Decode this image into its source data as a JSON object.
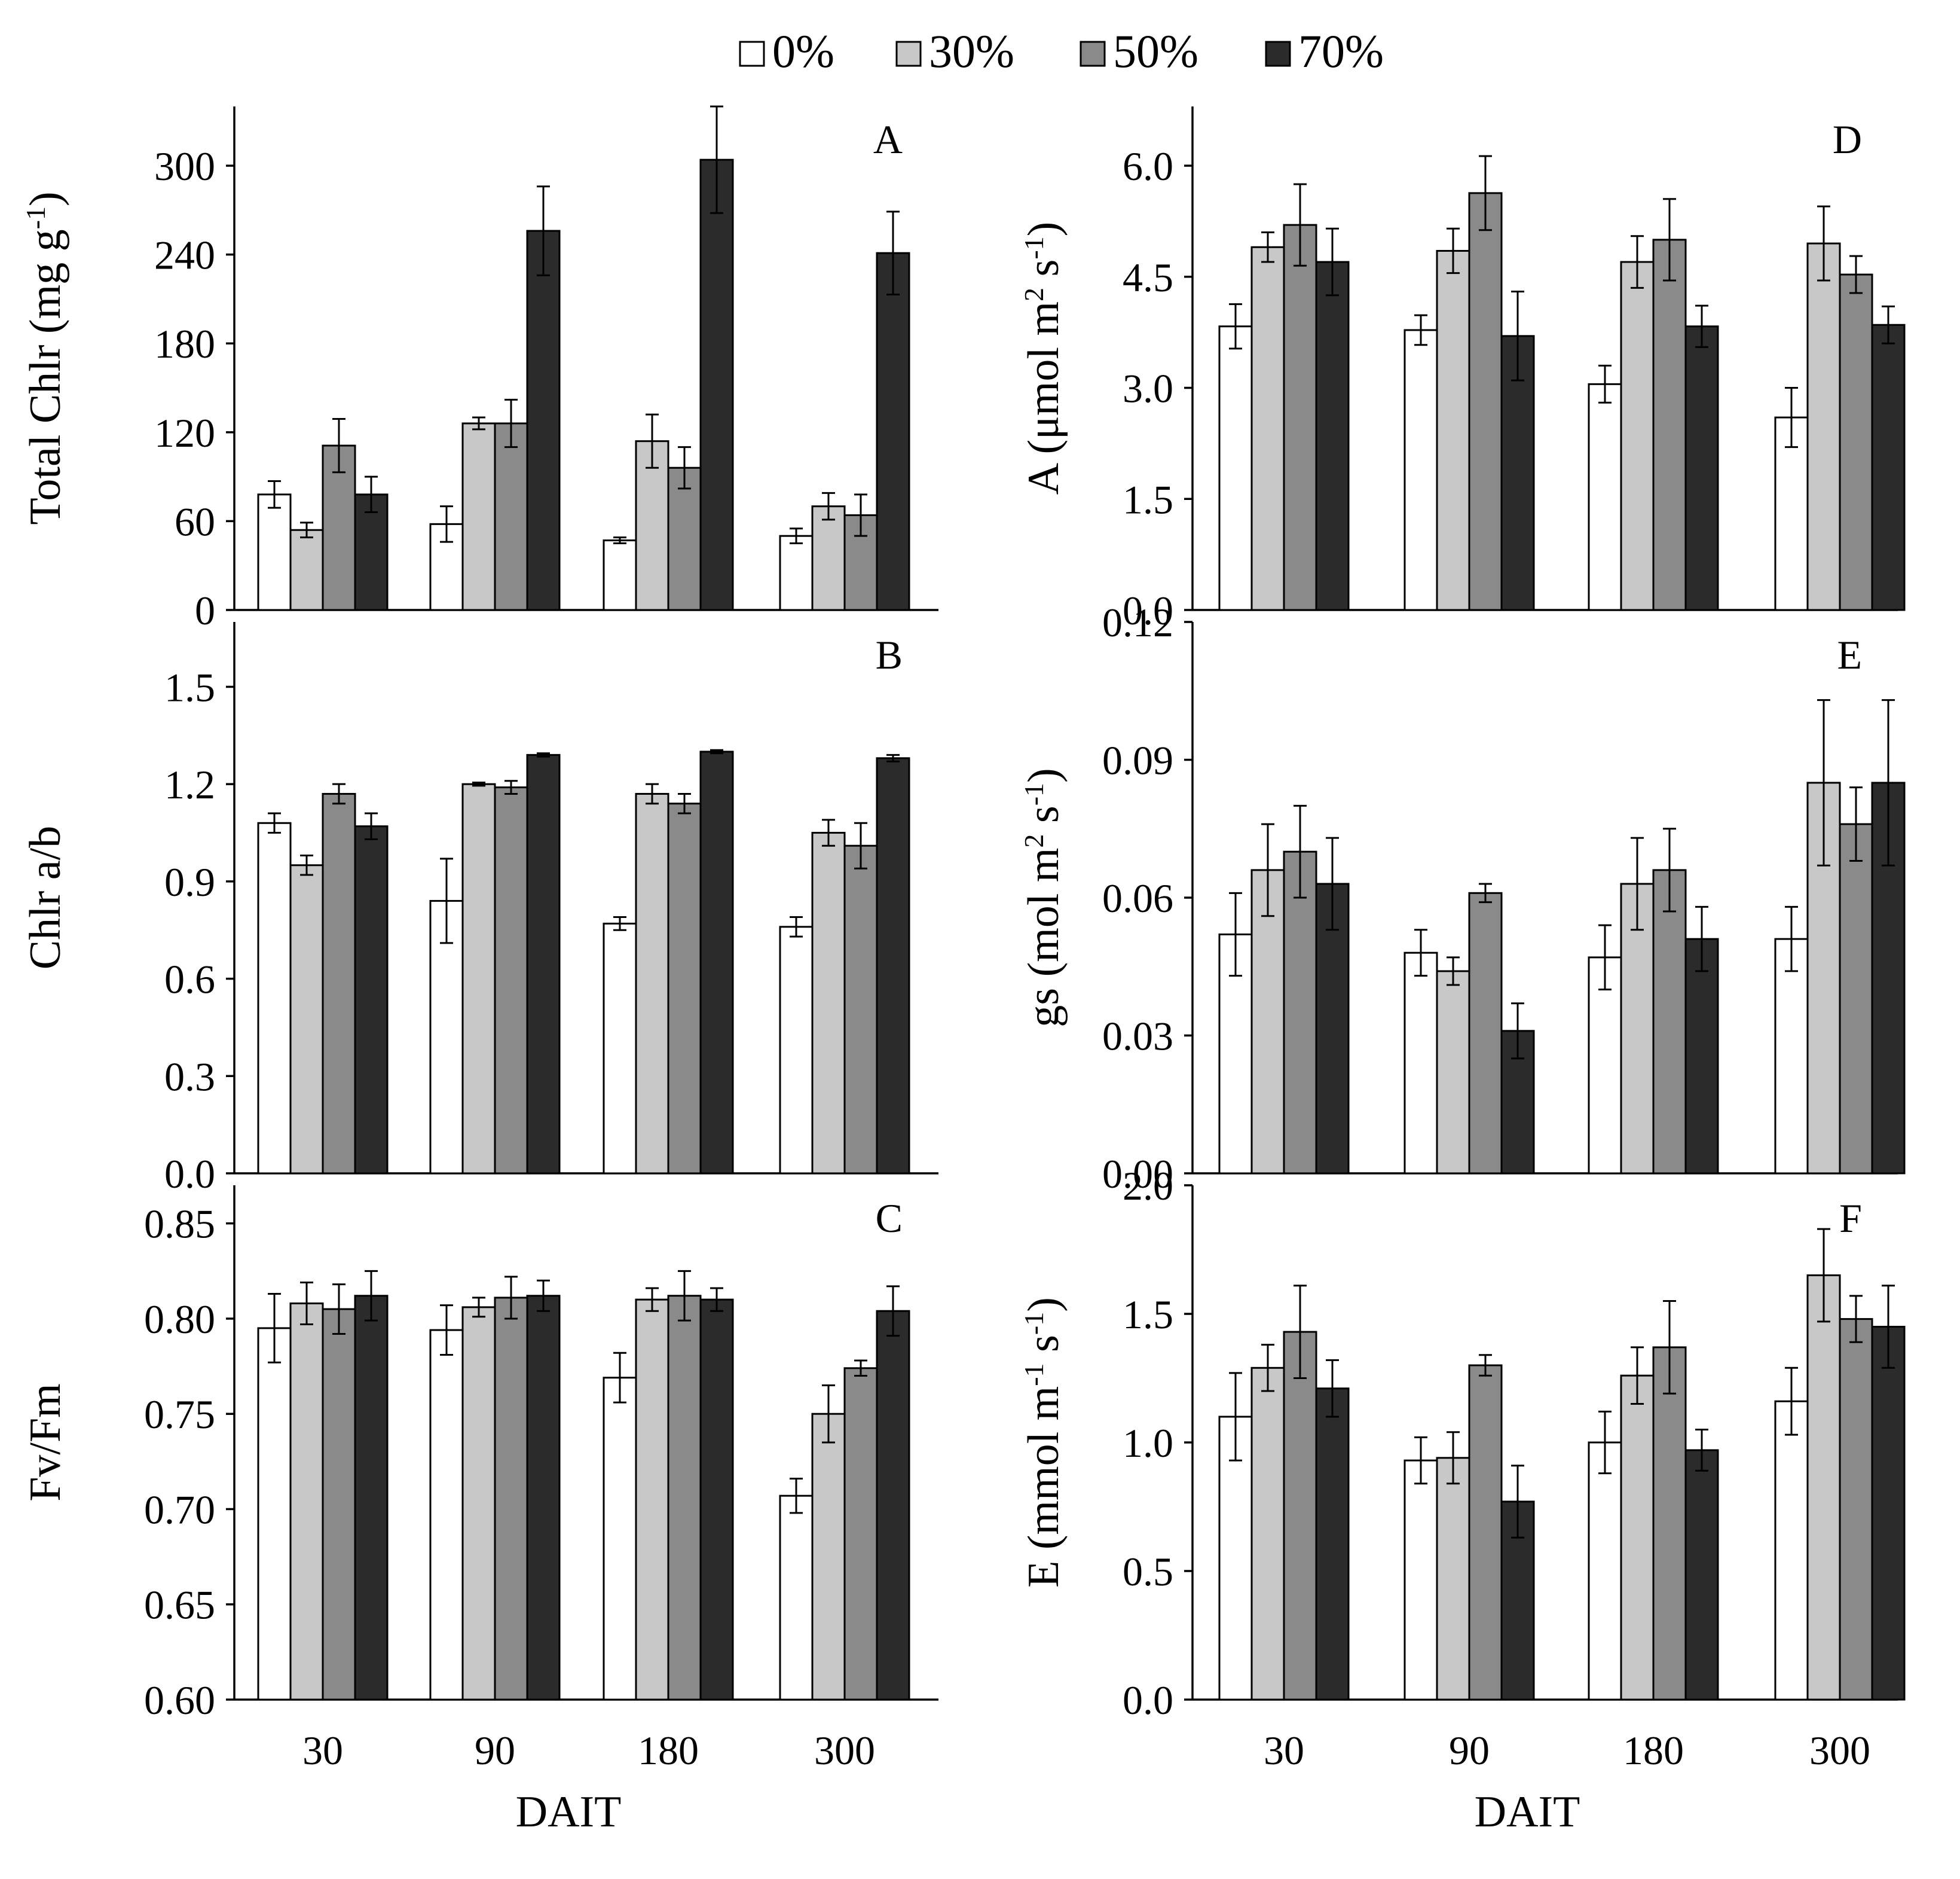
{
  "legend": {
    "items": [
      {
        "label": "0%",
        "color": "#ffffff"
      },
      {
        "label": "30%",
        "color": "#c8c8c8"
      },
      {
        "label": "50%",
        "color": "#8a8a8a"
      },
      {
        "label": "70%",
        "color": "#2b2b2b"
      }
    ]
  },
  "chart_data": [
    {
      "type": "bar",
      "panel": "A",
      "ylabel": "Total Chlr (mg g-1)",
      "ylim": [
        0,
        340
      ],
      "yticks": [
        "0",
        "60",
        "120",
        "180",
        "240",
        "300"
      ],
      "ytick_values": [
        0,
        60,
        120,
        180,
        240,
        300
      ],
      "categories": [
        "30",
        "90",
        "180",
        "300"
      ],
      "xlabel": "",
      "series": [
        {
          "name": "0%",
          "values": [
            78,
            58,
            47,
            50
          ],
          "errors": [
            9,
            12,
            2,
            5
          ]
        },
        {
          "name": "30%",
          "values": [
            54,
            126,
            114,
            70
          ],
          "errors": [
            5,
            4,
            18,
            9
          ]
        },
        {
          "name": "50%",
          "values": [
            111,
            126,
            96,
            64
          ],
          "errors": [
            18,
            16,
            14,
            14
          ]
        },
        {
          "name": "70%",
          "values": [
            78,
            256,
            304,
            241
          ],
          "errors": [
            12,
            30,
            36,
            28
          ]
        }
      ]
    },
    {
      "type": "bar",
      "panel": "B",
      "ylabel": "Chlr a/b",
      "ylim": [
        0,
        1.7
      ],
      "yticks": [
        "0.0",
        "0.3",
        "0.6",
        "0.9",
        "1.2",
        "1.5"
      ],
      "ytick_values": [
        0,
        0.3,
        0.6,
        0.9,
        1.2,
        1.5
      ],
      "categories": [
        "30",
        "90",
        "180",
        "300"
      ],
      "xlabel": "",
      "series": [
        {
          "name": "0%",
          "values": [
            1.08,
            0.84,
            0.77,
            0.76
          ],
          "errors": [
            0.03,
            0.13,
            0.02,
            0.03
          ]
        },
        {
          "name": "30%",
          "values": [
            0.95,
            1.2,
            1.17,
            1.05
          ],
          "errors": [
            0.03,
            0.005,
            0.03,
            0.04
          ]
        },
        {
          "name": "50%",
          "values": [
            1.17,
            1.19,
            1.14,
            1.01
          ],
          "errors": [
            0.03,
            0.02,
            0.03,
            0.07
          ]
        },
        {
          "name": "70%",
          "values": [
            1.07,
            1.29,
            1.3,
            1.28
          ],
          "errors": [
            0.04,
            0.005,
            0.005,
            0.01
          ]
        }
      ]
    },
    {
      "type": "bar",
      "panel": "C",
      "ylabel": "Fv/Fm",
      "ylim": [
        0.6,
        0.87
      ],
      "yticks": [
        "0.60",
        "0.65",
        "0.70",
        "0.75",
        "0.80",
        "0.85"
      ],
      "ytick_values": [
        0.6,
        0.65,
        0.7,
        0.75,
        0.8,
        0.85
      ],
      "categories": [
        "30",
        "90",
        "180",
        "300"
      ],
      "xlabel": "DAIT",
      "series": [
        {
          "name": "0%",
          "values": [
            0.795,
            0.794,
            0.769,
            0.707
          ],
          "errors": [
            0.018,
            0.013,
            0.013,
            0.009
          ]
        },
        {
          "name": "30%",
          "values": [
            0.808,
            0.806,
            0.81,
            0.75
          ],
          "errors": [
            0.011,
            0.005,
            0.006,
            0.015
          ]
        },
        {
          "name": "50%",
          "values": [
            0.805,
            0.811,
            0.812,
            0.774
          ],
          "errors": [
            0.013,
            0.011,
            0.013,
            0.004
          ]
        },
        {
          "name": "70%",
          "values": [
            0.812,
            0.812,
            0.81,
            0.804
          ],
          "errors": [
            0.013,
            0.008,
            0.006,
            0.013
          ]
        }
      ]
    },
    {
      "type": "bar",
      "panel": "D",
      "ylabel": "A (μmol m2 s-1)",
      "ylim": [
        0,
        6.8
      ],
      "yticks": [
        "0.0",
        "1.5",
        "3.0",
        "4.5",
        "6.0"
      ],
      "ytick_values": [
        0,
        1.5,
        3.0,
        4.5,
        6.0
      ],
      "categories": [
        "30",
        "90",
        "180",
        "300"
      ],
      "xlabel": "",
      "series": [
        {
          "name": "0%",
          "values": [
            3.83,
            3.78,
            3.05,
            2.6
          ],
          "errors": [
            0.3,
            0.2,
            0.25,
            0.4
          ]
        },
        {
          "name": "30%",
          "values": [
            4.9,
            4.85,
            4.7,
            4.95
          ],
          "errors": [
            0.2,
            0.3,
            0.35,
            0.5
          ]
        },
        {
          "name": "50%",
          "values": [
            5.2,
            5.63,
            5.0,
            4.53
          ],
          "errors": [
            0.55,
            0.5,
            0.55,
            0.25
          ]
        },
        {
          "name": "70%",
          "values": [
            4.7,
            3.7,
            3.83,
            3.85
          ],
          "errors": [
            0.45,
            0.6,
            0.28,
            0.25
          ]
        }
      ]
    },
    {
      "type": "bar",
      "panel": "E",
      "ylabel": "gs (mol m2 s-1)",
      "ylim": [
        0,
        0.12
      ],
      "yticks": [
        "0.00",
        "0.03",
        "0.06",
        "0.09",
        "0.12"
      ],
      "ytick_values": [
        0,
        0.03,
        0.06,
        0.09,
        0.12
      ],
      "categories": [
        "30",
        "90",
        "180",
        "300"
      ],
      "xlabel": "",
      "series": [
        {
          "name": "0%",
          "values": [
            0.052,
            0.048,
            0.047,
            0.051
          ],
          "errors": [
            0.009,
            0.005,
            0.007,
            0.007
          ]
        },
        {
          "name": "30%",
          "values": [
            0.066,
            0.044,
            0.063,
            0.085
          ],
          "errors": [
            0.01,
            0.003,
            0.01,
            0.018
          ]
        },
        {
          "name": "50%",
          "values": [
            0.07,
            0.061,
            0.066,
            0.076
          ],
          "errors": [
            0.01,
            0.002,
            0.009,
            0.008
          ]
        },
        {
          "name": "70%",
          "values": [
            0.063,
            0.031,
            0.051,
            0.085
          ],
          "errors": [
            0.01,
            0.006,
            0.007,
            0.018
          ]
        }
      ]
    },
    {
      "type": "bar",
      "panel": "F",
      "ylabel": "E (mmol m-1 s-1)",
      "ylim": [
        0,
        2.0
      ],
      "yticks": [
        "0.0",
        "0.5",
        "1.0",
        "1.5",
        "2.0"
      ],
      "ytick_values": [
        0,
        0.5,
        1.0,
        1.5,
        2.0
      ],
      "categories": [
        "30",
        "90",
        "180",
        "300"
      ],
      "xlabel": "DAIT",
      "series": [
        {
          "name": "0%",
          "values": [
            1.1,
            0.93,
            1.0,
            1.16
          ],
          "errors": [
            0.17,
            0.09,
            0.12,
            0.13
          ]
        },
        {
          "name": "30%",
          "values": [
            1.29,
            0.94,
            1.26,
            1.65
          ],
          "errors": [
            0.09,
            0.1,
            0.11,
            0.18
          ]
        },
        {
          "name": "50%",
          "values": [
            1.43,
            1.3,
            1.37,
            1.48
          ],
          "errors": [
            0.18,
            0.04,
            0.18,
            0.09
          ]
        },
        {
          "name": "70%",
          "values": [
            1.21,
            0.77,
            0.97,
            1.45
          ],
          "errors": [
            0.11,
            0.14,
            0.08,
            0.16
          ]
        }
      ]
    }
  ]
}
